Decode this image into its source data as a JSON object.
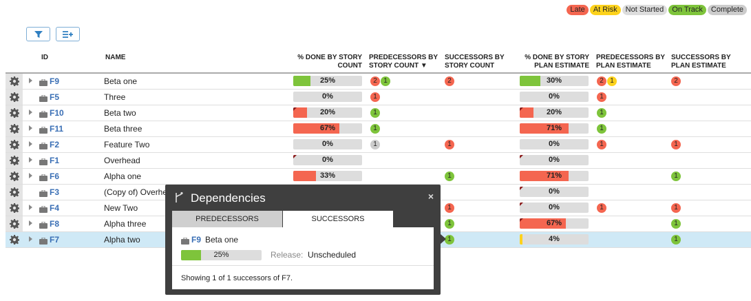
{
  "legend": [
    {
      "label": "Late",
      "color": "#f46650"
    },
    {
      "label": "At Risk",
      "color": "#fdd21c"
    },
    {
      "label": "Not Started",
      "color": "#dddddd"
    },
    {
      "label": "On Track",
      "color": "#7ec43b"
    },
    {
      "label": "Complete",
      "color": "#cccccc"
    }
  ],
  "toolbar": {
    "filter_icon": "filter-icon",
    "columns_icon": "list-add-icon"
  },
  "headers": {
    "id": "ID",
    "name": "NAME",
    "done_story": "% DONE BY STORY COUNT",
    "pred_story": "PREDECESSORS BY STORY COUNT ▼",
    "succ_story": "SUCCESSORS BY STORY COUNT",
    "done_plan": "% DONE BY STORY PLAN ESTIMATE",
    "pred_plan": "PREDECESSORS BY PLAN ESTIMATE",
    "succ_plan": "SUCCESSORS BY PLAN ESTIMATE"
  },
  "rows": [
    {
      "id": "F9",
      "name": "Beta one",
      "expand": true,
      "ds": {
        "v": 25,
        "t": "25%",
        "c": "#7ec43b",
        "corner": false
      },
      "ps": [
        {
          "n": "2",
          "s": "late"
        },
        {
          "n": "1",
          "s": "track"
        }
      ],
      "ss": [
        {
          "n": "2",
          "s": "late"
        }
      ],
      "dp": {
        "v": 30,
        "t": "30%",
        "c": "#7ec43b",
        "corner": false
      },
      "pp": [
        {
          "n": "2",
          "s": "late"
        },
        {
          "n": "1",
          "s": "risk"
        }
      ],
      "sp": [
        {
          "n": "2",
          "s": "late"
        }
      ]
    },
    {
      "id": "F5",
      "name": "Three",
      "expand": false,
      "ds": {
        "v": 0,
        "t": "0%",
        "c": "#f46650",
        "corner": false
      },
      "ps": [
        {
          "n": "1",
          "s": "late"
        }
      ],
      "ss": [],
      "dp": {
        "v": 0,
        "t": "0%",
        "c": "#f46650",
        "corner": false
      },
      "pp": [
        {
          "n": "1",
          "s": "late"
        }
      ],
      "sp": []
    },
    {
      "id": "F10",
      "name": "Beta two",
      "expand": true,
      "ds": {
        "v": 20,
        "t": "20%",
        "c": "#f46650",
        "corner": true
      },
      "ps": [
        {
          "n": "1",
          "s": "track"
        }
      ],
      "ss": [],
      "dp": {
        "v": 20,
        "t": "20%",
        "c": "#f46650",
        "corner": true
      },
      "pp": [
        {
          "n": "1",
          "s": "track"
        }
      ],
      "sp": []
    },
    {
      "id": "F11",
      "name": "Beta three",
      "expand": true,
      "ds": {
        "v": 67,
        "t": "67%",
        "c": "#f46650",
        "corner": false
      },
      "ps": [
        {
          "n": "1",
          "s": "track"
        }
      ],
      "ss": [],
      "dp": {
        "v": 71,
        "t": "71%",
        "c": "#f46650",
        "corner": false
      },
      "pp": [
        {
          "n": "1",
          "s": "track"
        }
      ],
      "sp": []
    },
    {
      "id": "F2",
      "name": "Feature Two",
      "expand": true,
      "ds": {
        "v": 0,
        "t": "0%",
        "c": "#f46650",
        "corner": false
      },
      "ps": [
        {
          "n": "1",
          "s": "ns"
        }
      ],
      "ss": [
        {
          "n": "1",
          "s": "late"
        }
      ],
      "dp": {
        "v": 0,
        "t": "0%",
        "c": "#f46650",
        "corner": false
      },
      "pp": [
        {
          "n": "1",
          "s": "late"
        }
      ],
      "sp": [
        {
          "n": "1",
          "s": "late"
        }
      ]
    },
    {
      "id": "F1",
      "name": "Overhead",
      "expand": true,
      "ds": {
        "v": 0,
        "t": "0%",
        "c": "#f46650",
        "corner": true
      },
      "ps": [],
      "ss": [],
      "dp": {
        "v": 0,
        "t": "0%",
        "c": "#f46650",
        "corner": true
      },
      "pp": [],
      "sp": []
    },
    {
      "id": "F6",
      "name": "Alpha one",
      "expand": true,
      "ds": {
        "v": 33,
        "t": "33%",
        "c": "#f46650",
        "corner": false
      },
      "ps": [],
      "ss": [
        {
          "n": "1",
          "s": "track"
        }
      ],
      "dp": {
        "v": 71,
        "t": "71%",
        "c": "#f46650",
        "corner": false
      },
      "pp": [],
      "sp": [
        {
          "n": "1",
          "s": "track"
        }
      ]
    },
    {
      "id": "F3",
      "name": "(Copy of) Overhead",
      "expand": false,
      "ds": null,
      "ps": [],
      "ss": [],
      "dp": {
        "v": 0,
        "t": "0%",
        "c": "#f46650",
        "corner": true
      },
      "pp": [],
      "sp": []
    },
    {
      "id": "F4",
      "name": "New Two",
      "expand": true,
      "ds": null,
      "ps": [],
      "ss": [
        {
          "n": "1",
          "s": "late"
        }
      ],
      "dp": {
        "v": 0,
        "t": "0%",
        "c": "#f46650",
        "corner": true
      },
      "pp": [
        {
          "n": "1",
          "s": "late"
        }
      ],
      "sp": [
        {
          "n": "1",
          "s": "late"
        }
      ]
    },
    {
      "id": "F8",
      "name": "Alpha three",
      "expand": true,
      "ds": null,
      "ps": [],
      "ss": [
        {
          "n": "1",
          "s": "track"
        }
      ],
      "dp": {
        "v": 67,
        "t": "67%",
        "c": "#f46650",
        "corner": true
      },
      "pp": [],
      "sp": [
        {
          "n": "1",
          "s": "track"
        }
      ]
    },
    {
      "id": "F7",
      "name": "Alpha two",
      "expand": true,
      "sel": true,
      "ds": null,
      "ps": [],
      "ss": [
        {
          "n": "1",
          "s": "track"
        }
      ],
      "dp": {
        "v": 4,
        "t": "4%",
        "c": "#fdd21c",
        "corner": false
      },
      "pp": [],
      "sp": [
        {
          "n": "1",
          "s": "track"
        }
      ]
    }
  ],
  "popup": {
    "title": "Dependencies",
    "close": "×",
    "tabs": {
      "predecessors": "PREDECESSORS",
      "successors": "SUCCESSORS"
    },
    "item": {
      "id": "F9",
      "name": "Beta one",
      "progress_text": "25%",
      "progress": 25,
      "progress_color": "#7ec43b",
      "release_label": "Release:",
      "release_value": "Unscheduled"
    },
    "footer": "Showing 1 of 1 successors of F7."
  }
}
